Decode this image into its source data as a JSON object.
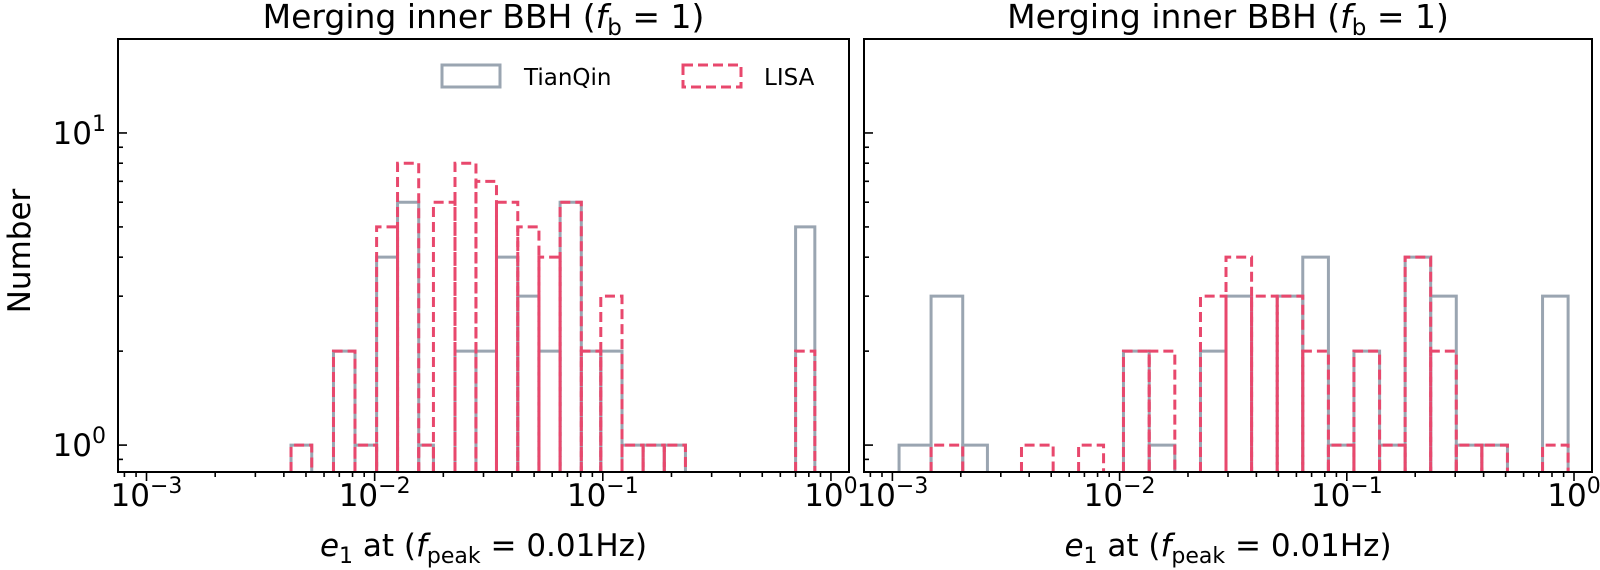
{
  "figure": {
    "ylabel": "Number",
    "legend": {
      "placement": "top-right of left panel",
      "items": [
        {
          "label": "TianQin",
          "style": "solid",
          "color": "#9aa5b1"
        },
        {
          "label": "LISA",
          "style": "dashed",
          "color": "#e8486d"
        }
      ]
    }
  },
  "chart_data": [
    {
      "type": "histogram",
      "title_text": "Merging inner BBH (",
      "title_var": "f",
      "title_sub": "b",
      "title_tail": " = 1)",
      "xlabel_var": "e",
      "xlabel_sub": "1",
      "xlabel_mid": " at (",
      "xlabel_var2": "f",
      "xlabel_sub2": "peak",
      "xlabel_tail": " = 0.01Hz)",
      "xscale": "log",
      "yscale": "log",
      "xlim": [
        0.00075,
        1.2
      ],
      "ylim": [
        0.82,
        20
      ],
      "xticks": [
        {
          "value": 0.001,
          "label": "10",
          "exp": "−3"
        },
        {
          "value": 0.01,
          "label": "10",
          "exp": "−2"
        },
        {
          "value": 0.1,
          "label": "10",
          "exp": "−1"
        },
        {
          "value": 1,
          "label": "10",
          "exp": "0"
        }
      ],
      "yticks": [
        {
          "value": 1,
          "label": "10",
          "exp": "0"
        },
        {
          "value": 10,
          "label": "10",
          "exp": "1"
        }
      ],
      "show_ytick_labels": true,
      "show_legend": true,
      "series": [
        {
          "name": "TianQin",
          "style": "solid",
          "color": "#9aa5b1",
          "bins": [
            [
              0.0043,
              0.0053,
              1
            ],
            [
              0.0053,
              0.0066,
              0
            ],
            [
              0.0066,
              0.0082,
              2
            ],
            [
              0.0082,
              0.0102,
              1
            ],
            [
              0.0102,
              0.0126,
              4
            ],
            [
              0.0126,
              0.0156,
              6
            ],
            [
              0.0156,
              0.0181,
              1
            ],
            [
              0.0181,
              0.0225,
              0
            ],
            [
              0.0225,
              0.0278,
              2
            ],
            [
              0.0278,
              0.0342,
              2
            ],
            [
              0.0342,
              0.0424,
              4
            ],
            [
              0.0424,
              0.0525,
              3
            ],
            [
              0.0525,
              0.065,
              2
            ],
            [
              0.065,
              0.0805,
              6
            ],
            [
              0.0805,
              0.098,
              2
            ],
            [
              0.098,
              0.1214,
              2
            ],
            [
              0.1214,
              0.1502,
              1
            ],
            [
              0.1502,
              0.186,
              1
            ],
            [
              0.186,
              0.2303,
              1
            ],
            [
              0.7,
              0.85,
              5
            ]
          ]
        },
        {
          "name": "LISA",
          "style": "dashed",
          "color": "#e8486d",
          "bins": [
            [
              0.0043,
              0.0053,
              1
            ],
            [
              0.0053,
              0.0066,
              0
            ],
            [
              0.0066,
              0.0082,
              2
            ],
            [
              0.0082,
              0.0102,
              1
            ],
            [
              0.0102,
              0.0126,
              5
            ],
            [
              0.0126,
              0.0156,
              8
            ],
            [
              0.0156,
              0.0181,
              1
            ],
            [
              0.0181,
              0.0225,
              6
            ],
            [
              0.0225,
              0.0278,
              8
            ],
            [
              0.0278,
              0.0342,
              7
            ],
            [
              0.0342,
              0.0424,
              6
            ],
            [
              0.0424,
              0.0525,
              5
            ],
            [
              0.0525,
              0.065,
              4
            ],
            [
              0.065,
              0.0805,
              6
            ],
            [
              0.0805,
              0.098,
              2
            ],
            [
              0.098,
              0.1214,
              3
            ],
            [
              0.1214,
              0.1502,
              1
            ],
            [
              0.1502,
              0.186,
              1
            ],
            [
              0.186,
              0.2303,
              1
            ],
            [
              0.7,
              0.85,
              2
            ]
          ]
        }
      ]
    },
    {
      "type": "histogram",
      "title_text": "Merging inner BBH (",
      "title_var": "f",
      "title_sub": "b",
      "title_tail": " = 1)",
      "xlabel_var": "e",
      "xlabel_sub": "1",
      "xlabel_mid": " at (",
      "xlabel_var2": "f",
      "xlabel_sub2": "peak",
      "xlabel_tail": " = 0.01Hz)",
      "xscale": "log",
      "yscale": "log",
      "xlim": [
        0.00075,
        1.2
      ],
      "ylim": [
        0.82,
        20
      ],
      "xticks": [
        {
          "value": 0.001,
          "label": "10",
          "exp": "−3"
        },
        {
          "value": 0.01,
          "label": "10",
          "exp": "−2"
        },
        {
          "value": 0.1,
          "label": "10",
          "exp": "−1"
        },
        {
          "value": 1,
          "label": "10",
          "exp": "0"
        }
      ],
      "yticks": [
        {
          "value": 1,
          "label": "10",
          "exp": "0"
        },
        {
          "value": 10,
          "label": "10",
          "exp": "1"
        }
      ],
      "show_ytick_labels": false,
      "show_legend": false,
      "series": [
        {
          "name": "TianQin",
          "style": "solid",
          "color": "#9aa5b1",
          "bins": [
            [
              0.00107,
              0.00148,
              1
            ],
            [
              0.00148,
              0.00204,
              3
            ],
            [
              0.00204,
              0.00262,
              1
            ],
            [
              0.0037,
              0.0051,
              0
            ],
            [
              0.0051,
              0.0066,
              0
            ],
            [
              0.0104,
              0.0135,
              2
            ],
            [
              0.0135,
              0.0175,
              1
            ],
            [
              0.0175,
              0.0227,
              0
            ],
            [
              0.0227,
              0.0294,
              2
            ],
            [
              0.0294,
              0.0381,
              3
            ],
            [
              0.0381,
              0.0494,
              0
            ],
            [
              0.0494,
              0.064,
              3
            ],
            [
              0.064,
              0.083,
              4
            ],
            [
              0.083,
              0.1075,
              1
            ],
            [
              0.1075,
              0.1394,
              2
            ],
            [
              0.1394,
              0.1806,
              1
            ],
            [
              0.1806,
              0.234,
              4
            ],
            [
              0.234,
              0.3033,
              3
            ],
            [
              0.3033,
              0.393,
              1
            ],
            [
              0.393,
              0.5094,
              1
            ],
            [
              0.727,
              0.942,
              3
            ]
          ]
        },
        {
          "name": "LISA",
          "style": "dashed",
          "color": "#e8486d",
          "bins": [
            [
              0.00148,
              0.00204,
              1
            ],
            [
              0.0037,
              0.0051,
              1
            ],
            [
              0.0051,
              0.0066,
              0
            ],
            [
              0.0066,
              0.0085,
              1
            ],
            [
              0.0085,
              0.0104,
              0
            ],
            [
              0.0104,
              0.0135,
              2
            ],
            [
              0.0135,
              0.0175,
              2
            ],
            [
              0.0175,
              0.0227,
              0
            ],
            [
              0.0227,
              0.0294,
              3
            ],
            [
              0.0294,
              0.0381,
              4
            ],
            [
              0.0381,
              0.0494,
              3
            ],
            [
              0.0494,
              0.064,
              3
            ],
            [
              0.064,
              0.083,
              2
            ],
            [
              0.083,
              0.1075,
              1
            ],
            [
              0.1075,
              0.1394,
              2
            ],
            [
              0.1394,
              0.1806,
              1
            ],
            [
              0.1806,
              0.234,
              4
            ],
            [
              0.234,
              0.3033,
              2
            ],
            [
              0.3033,
              0.393,
              1
            ],
            [
              0.393,
              0.5094,
              1
            ],
            [
              0.727,
              0.942,
              1
            ]
          ]
        }
      ]
    }
  ]
}
